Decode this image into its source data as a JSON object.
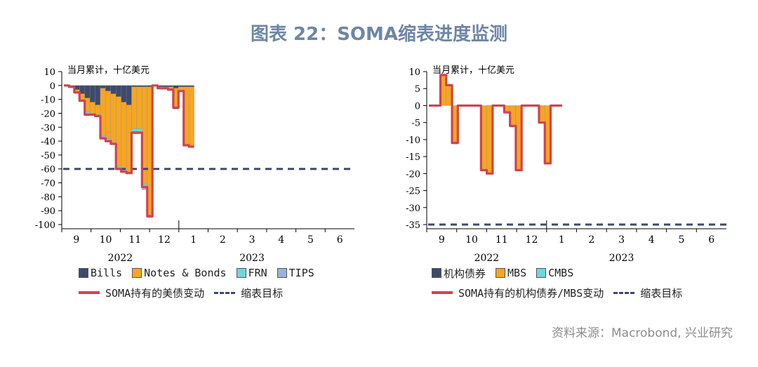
{
  "title": "图表 22：SOMA缩表进度监测",
  "source": "资料来源：Macrobond, 兴业研究",
  "colors": {
    "bills": "#3e4a6c",
    "notes_bonds": "#f5a623",
    "frn": "#6fd6dc",
    "tips": "#9bb3d9",
    "mbs": "#f5a623",
    "cmbs": "#6fd6dc",
    "soma_line": "#d0434e",
    "target": "#3e4a6c",
    "title": "#6e86a6"
  },
  "chart_data": [
    {
      "type": "bar",
      "unit_note": "当月累计，十亿美元",
      "ylim": [
        -100,
        10
      ],
      "yticks": [
        "10",
        "0",
        "-10",
        "-20",
        "-30",
        "-40",
        "-50",
        "-60",
        "-70",
        "-80",
        "-90",
        "-100"
      ],
      "x_tick_labels": [
        "9",
        "10",
        "11",
        "12",
        "1",
        "2",
        "3",
        "4",
        "5",
        "6"
      ],
      "x_year_labels": [
        "2022",
        "2023"
      ],
      "grid": false,
      "legend": {
        "bills": "Bills",
        "notes_bonds": "Notes & Bonds",
        "frn": "FRN",
        "tips": "TIPS",
        "soma_line": "SOMA持有的美债变动",
        "target": "缩表目标"
      },
      "target": -60,
      "x_start": "2022-09-01",
      "x_end": "2023-06-30",
      "series": {
        "bills": [
          0,
          -1,
          -3,
          -6,
          -9,
          -12,
          -14,
          -2,
          -4,
          -6,
          -8,
          -12,
          -14,
          -1,
          -1,
          -1,
          -1,
          0,
          -1,
          -1,
          -1,
          -2,
          -1,
          -1,
          -1
        ],
        "notes_bonds": [
          0,
          0,
          -2,
          -4,
          -10,
          -8,
          -7,
          -34,
          -34,
          -35,
          -50,
          -48,
          -48,
          -30,
          -30,
          -70,
          -92,
          0,
          0,
          -1,
          -2,
          -14,
          -2,
          -42,
          -43
        ],
        "frn": [
          0,
          0,
          0,
          0,
          -1,
          0,
          0,
          0,
          0,
          0,
          -1,
          0,
          0,
          -2,
          -2,
          -2,
          -1,
          0,
          0,
          0,
          0,
          0,
          0,
          0,
          0
        ],
        "tips": [
          0,
          0,
          0,
          -1,
          -1,
          -1,
          -1,
          -1,
          -1,
          -1,
          -1,
          -1,
          -1,
          -1,
          -1,
          -2,
          -1,
          0,
          0,
          0,
          0,
          -1,
          0,
          0,
          0
        ]
      },
      "soma_line": [
        0,
        -1,
        -5,
        -11,
        -21,
        -21,
        -22,
        -38,
        -40,
        -42,
        -60,
        -62,
        -63,
        -34,
        -34,
        -73,
        -94,
        0,
        -2,
        -2,
        -3,
        -16,
        -4,
        -43,
        -44
      ]
    },
    {
      "type": "bar",
      "unit_note": "当月累计，十亿美元",
      "ylim": [
        -35,
        10
      ],
      "yticks": [
        "10",
        "5",
        "0",
        "-5",
        "-10",
        "-15",
        "-20",
        "-25",
        "-30",
        "-35"
      ],
      "x_tick_labels": [
        "9",
        "10",
        "11",
        "12",
        "1",
        "2",
        "3",
        "4",
        "5",
        "6"
      ],
      "x_year_labels": [
        "2022",
        "2023"
      ],
      "grid": false,
      "legend": {
        "agency": "机构债券",
        "mbs": "MBS",
        "cmbs": "CMBS",
        "soma_line": "SOMA持有的机构债券/MBS变动",
        "target": "缩表目标"
      },
      "target": -35,
      "x_start": "2022-09-01",
      "x_end": "2023-06-30",
      "series": {
        "agency": [
          0,
          0,
          0,
          0,
          0,
          0,
          0,
          0,
          0,
          0,
          0,
          0,
          0,
          0,
          0,
          0,
          0,
          0,
          0,
          0,
          0,
          0,
          0
        ],
        "mbs": [
          0,
          0,
          9,
          6,
          -11,
          0,
          0,
          0,
          0,
          -19,
          -20,
          0,
          0,
          -2,
          -6,
          -19,
          0,
          0,
          0,
          -5,
          -17,
          0,
          0
        ],
        "cmbs": [
          0,
          0,
          0,
          0,
          0,
          0,
          0,
          0,
          0,
          0,
          0,
          0,
          0,
          0,
          0,
          0,
          0,
          0,
          0,
          0,
          0,
          0,
          0
        ]
      },
      "soma_line": [
        0,
        0,
        9,
        6,
        -11,
        0,
        0,
        0,
        0,
        -19,
        -20,
        0,
        0,
        -2,
        -6,
        -19,
        0,
        0,
        0,
        -5,
        -17,
        0,
        0
      ]
    }
  ]
}
